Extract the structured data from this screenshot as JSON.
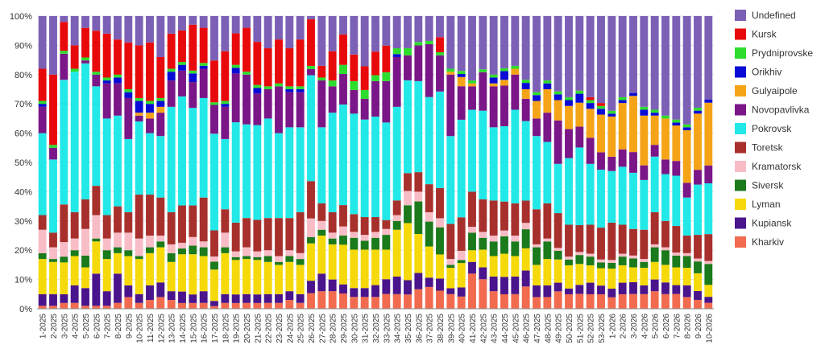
{
  "chart_data": {
    "type": "bar",
    "stacked": true,
    "normalized": true,
    "title": "",
    "xlabel": "",
    "ylabel": "",
    "ylim": [
      0,
      100
    ],
    "yticks": [
      "0%",
      "10%",
      "20%",
      "30%",
      "40%",
      "50%",
      "60%",
      "70%",
      "80%",
      "90%",
      "100%"
    ],
    "legend_position": "right",
    "categories": [
      "1-2025",
      "2-2025",
      "3-2025",
      "4-2025",
      "5-2025",
      "6-2025",
      "7-2025",
      "8-2025",
      "9-2025",
      "10-2025",
      "11-2025",
      "12-2025",
      "13-2025",
      "14-2025",
      "15-2025",
      "16-2025",
      "17-2025",
      "18-2025",
      "19-2025",
      "20-2025",
      "21-2025",
      "22-2025",
      "23-2025",
      "24-2025",
      "25-2025",
      "26-2025",
      "27-2025",
      "28-2025",
      "29-2025",
      "30-2025",
      "31-2025",
      "32-2025",
      "33-2025",
      "34-2025",
      "35-2025",
      "36-2025",
      "37-2025",
      "38-2025",
      "39-2025",
      "40-2025",
      "41-2025",
      "42-2025",
      "43-2025",
      "44-2025",
      "45-2025",
      "46-2025",
      "47-2025",
      "48-2025",
      "49-2025",
      "50-2025",
      "51-2025",
      "52-2025",
      "53-2025",
      "1-2026",
      "2-2026",
      "3-2026",
      "4-2026",
      "5-2026",
      "6-2026",
      "7-2026",
      "8-2026",
      "9-2026",
      "10-2026"
    ],
    "series": [
      {
        "name": "Kharkiv",
        "color": "#f26b4f",
        "values": [
          1,
          1,
          2,
          2,
          1,
          1,
          1,
          2,
          4,
          2,
          3,
          4,
          3,
          2,
          2,
          2,
          1,
          2,
          2,
          2,
          2,
          2,
          2,
          3,
          2,
          5,
          6,
          6,
          5,
          4,
          4,
          4,
          5,
          5,
          4,
          6,
          7,
          6,
          5,
          4,
          12,
          10,
          6,
          5,
          5,
          7,
          4,
          4,
          6,
          5,
          5,
          5,
          5,
          4,
          5,
          5,
          5,
          6,
          5,
          5,
          4,
          3,
          2
        ]
      },
      {
        "name": "Kupiansk",
        "color": "#4a148c",
        "values": [
          4,
          4,
          3,
          6,
          6,
          11,
          5,
          10,
          4,
          3,
          5,
          5,
          3,
          4,
          3,
          4,
          2,
          3,
          3,
          3,
          3,
          3,
          3,
          3,
          3,
          4,
          6,
          4,
          3,
          3,
          3,
          4,
          5,
          6,
          4,
          5,
          3,
          4,
          2,
          3,
          4,
          4,
          5,
          6,
          6,
          5,
          4,
          4,
          3,
          2,
          3,
          4,
          3,
          3,
          4,
          4,
          3,
          4,
          4,
          3,
          4,
          3,
          2
        ]
      },
      {
        "name": "Lyman",
        "color": "#f5d90a",
        "values": [
          12,
          11,
          11,
          10,
          7,
          11,
          11,
          7,
          10,
          12,
          11,
          12,
          10,
          13,
          14,
          12,
          12,
          14,
          12,
          12,
          12,
          11,
          10,
          10,
          10,
          12,
          13,
          12,
          13,
          13,
          13,
          12,
          10,
          16,
          16,
          12,
          10,
          8,
          7,
          8,
          4,
          6,
          7,
          8,
          7,
          7,
          7,
          9,
          8,
          8,
          7,
          6,
          6,
          7,
          6,
          5,
          6,
          6,
          6,
          6,
          6,
          6,
          4
        ]
      },
      {
        "name": "Siversk",
        "color": "#1b7a1b",
        "values": [
          2,
          1,
          2,
          2,
          4,
          1,
          3,
          2,
          2,
          1,
          2,
          2,
          3,
          2,
          3,
          3,
          3,
          2,
          1,
          1,
          1,
          2,
          1,
          2,
          2,
          2,
          2,
          2,
          3,
          4,
          3,
          4,
          5,
          3,
          5,
          10,
          8,
          9,
          1,
          1,
          6,
          4,
          5,
          6,
          5,
          6,
          6,
          6,
          3,
          2,
          3,
          3,
          2,
          2,
          3,
          3,
          2,
          5,
          5,
          4,
          4,
          4,
          7
        ]
      },
      {
        "name": "Kramatorsk",
        "color": "#f8bcc6",
        "values": [
          8,
          4,
          5,
          4,
          9,
          8,
          4,
          5,
          6,
          6,
          4,
          2,
          3,
          2,
          3,
          2,
          2,
          5,
          2,
          3,
          2,
          2,
          2,
          2,
          2,
          6,
          3,
          2,
          3,
          2,
          2,
          2,
          2,
          2,
          4,
          3,
          3,
          3,
          2,
          3,
          2,
          2,
          2,
          2,
          2,
          2,
          1,
          1,
          1,
          1,
          1,
          1,
          1,
          1,
          1,
          1,
          1,
          1,
          1,
          1,
          1,
          1,
          1
        ]
      },
      {
        "name": "Toretsk",
        "color": "#a8302c",
        "values": [
          5,
          5,
          13,
          9,
          10,
          10,
          8,
          9,
          7,
          15,
          14,
          13,
          11,
          13,
          11,
          15,
          10,
          8,
          10,
          10,
          11,
          11,
          13,
          11,
          14,
          12,
          6,
          7,
          7,
          6,
          6,
          5,
          3,
          5,
          5,
          6,
          9,
          10,
          12,
          11,
          12,
          11,
          12,
          10,
          11,
          7,
          12,
          12,
          12,
          11,
          9,
          10,
          11,
          13,
          10,
          9,
          10,
          11,
          9,
          9,
          6,
          8,
          9
        ]
      },
      {
        "name": "Pokrovsk",
        "color": "#22e8e8",
        "values": [
          28,
          25,
          43,
          48,
          46,
          34,
          33,
          31,
          25,
          25,
          21,
          21,
          36,
          38,
          34,
          34,
          37,
          24,
          35,
          32,
          33,
          34,
          29,
          31,
          29,
          34,
          26,
          34,
          33,
          34,
          33,
          34,
          33,
          32,
          26,
          28,
          28,
          32,
          30,
          32,
          28,
          30,
          25,
          26,
          32,
          25,
          25,
          21,
          17,
          23,
          26,
          21,
          20,
          18,
          20,
          19,
          17,
          19,
          16,
          17,
          13,
          17,
          17
        ]
      },
      {
        "name": "Novopavlivka",
        "color": "#7a1687",
        "values": [
          9,
          4,
          9,
          0,
          1,
          4,
          12,
          11,
          14,
          2,
          5,
          8,
          9,
          9,
          9,
          10,
          11,
          11,
          17,
          17,
          11,
          10,
          16,
          12,
          12,
          2,
          16,
          9,
          10,
          8,
          7,
          12,
          14,
          17,
          7,
          11,
          17,
          12,
          21,
          11,
          8,
          13,
          14,
          14,
          12,
          7,
          6,
          10,
          15,
          10,
          7,
          9,
          6,
          5,
          6,
          7,
          5,
          4,
          5,
          5,
          5,
          5,
          6
        ]
      },
      {
        "name": "Gulyaipole",
        "color": "#f5a418",
        "values": [
          0,
          0,
          0,
          0,
          0,
          0,
          0,
          0,
          0,
          1,
          2,
          2,
          0,
          0,
          0,
          0,
          0,
          0,
          0,
          0,
          0,
          0,
          0,
          0,
          0,
          0,
          0,
          0,
          0,
          0,
          0,
          0,
          0,
          0,
          0,
          0,
          0,
          0,
          1,
          3,
          1,
          0,
          1,
          2,
          2,
          3,
          6,
          8,
          7,
          8,
          8,
          10,
          13,
          14,
          16,
          19,
          17,
          10,
          14,
          12,
          18,
          19,
          21
        ]
      },
      {
        "name": "Orikhiv",
        "color": "#0a0ad6",
        "values": [
          1,
          0,
          0,
          0,
          0,
          0,
          1,
          2,
          2,
          4,
          3,
          2,
          3,
          2,
          3,
          1,
          0,
          1,
          2,
          0,
          2,
          0,
          0,
          1,
          1,
          0,
          0,
          0,
          0,
          0,
          0,
          0,
          0,
          1,
          0,
          0,
          0,
          0,
          0,
          1,
          0,
          0,
          2,
          3,
          0,
          2,
          2,
          2,
          2,
          2,
          3,
          2,
          2,
          1,
          1,
          1,
          2,
          1,
          0,
          1,
          1,
          1,
          1
        ]
      },
      {
        "name": "Prydniprovske",
        "color": "#2ddc2d",
        "values": [
          1,
          1,
          1,
          1,
          1,
          1,
          1,
          1,
          1,
          1,
          1,
          1,
          1,
          1,
          1,
          1,
          1,
          1,
          1,
          1,
          1,
          1,
          1,
          1,
          1,
          1,
          1,
          2,
          3,
          3,
          3,
          2,
          3,
          2,
          2,
          1,
          1,
          1,
          1,
          1,
          1,
          1,
          1,
          1,
          1,
          1,
          1,
          1,
          1,
          1,
          1,
          1,
          1,
          1,
          1,
          0,
          1,
          1,
          1,
          1,
          1,
          1,
          0
        ]
      },
      {
        "name": "Kursk",
        "color": "#e80a0a",
        "values": [
          11,
          24,
          10,
          8,
          10,
          14,
          15,
          12,
          16,
          18,
          20,
          14,
          12,
          11,
          16,
          12,
          16,
          17,
          11,
          15,
          15,
          13,
          15,
          13,
          16,
          15,
          4,
          10,
          10,
          9,
          8,
          8,
          9,
          0,
          0,
          0,
          0,
          5,
          0,
          0,
          0,
          0,
          0,
          0,
          0,
          0,
          0,
          0,
          0,
          0,
          0,
          1,
          1,
          0,
          0,
          0,
          0,
          0,
          0,
          0,
          0,
          0,
          0
        ]
      },
      {
        "name": "Undefined",
        "color": "#7c60b5",
        "values": [
          18,
          20,
          2,
          10,
          4,
          5,
          6,
          8,
          9,
          10,
          9,
          14,
          6,
          5,
          3,
          4,
          17,
          12,
          6,
          4,
          9,
          11,
          8,
          11,
          8,
          1,
          17,
          12,
          6,
          13,
          17,
          12,
          10,
          11,
          9,
          8,
          8,
          7,
          18,
          18,
          22,
          18,
          20,
          18,
          17,
          20,
          26,
          22,
          26,
          28,
          25,
          28,
          30,
          33,
          28,
          26,
          31,
          32,
          34,
          35,
          37,
          31,
          28
        ]
      }
    ]
  }
}
